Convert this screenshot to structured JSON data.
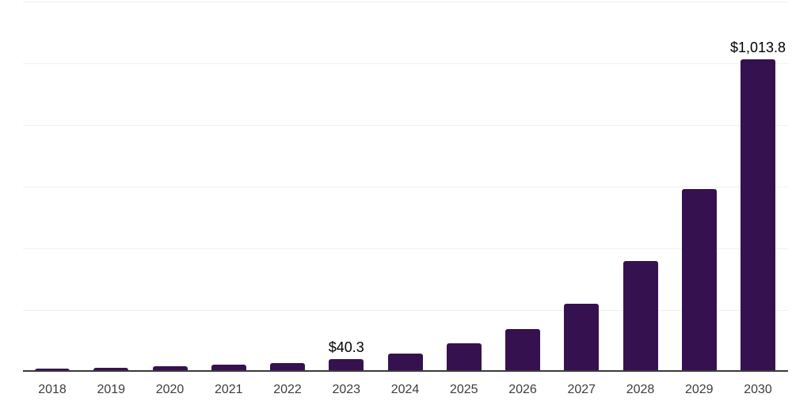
{
  "chart_data": {
    "type": "bar",
    "title": "",
    "xlabel": "",
    "ylabel": "",
    "categories": [
      "2018",
      "2019",
      "2020",
      "2021",
      "2022",
      "2023",
      "2024",
      "2025",
      "2026",
      "2027",
      "2028",
      "2029",
      "2030"
    ],
    "values": [
      11,
      14,
      18,
      23,
      28,
      40.3,
      60,
      92,
      138,
      220,
      360,
      592,
      1013.8
    ],
    "value_labels": [
      "",
      "",
      "",
      "",
      "",
      "$40.3",
      "",
      "",
      "",
      "",
      "",
      "",
      "$1,013.8"
    ],
    "ylim": [
      0,
      1200
    ],
    "gridline_interval": 200,
    "grid": true,
    "legend_position": "none",
    "colors": {
      "bar": "#361150",
      "axis_line": "#3A3A3A",
      "gridline": "#F0F0F0",
      "tick_label": "#3D3D3D",
      "data_label": "#000000",
      "background": "#FFFFFF"
    }
  }
}
